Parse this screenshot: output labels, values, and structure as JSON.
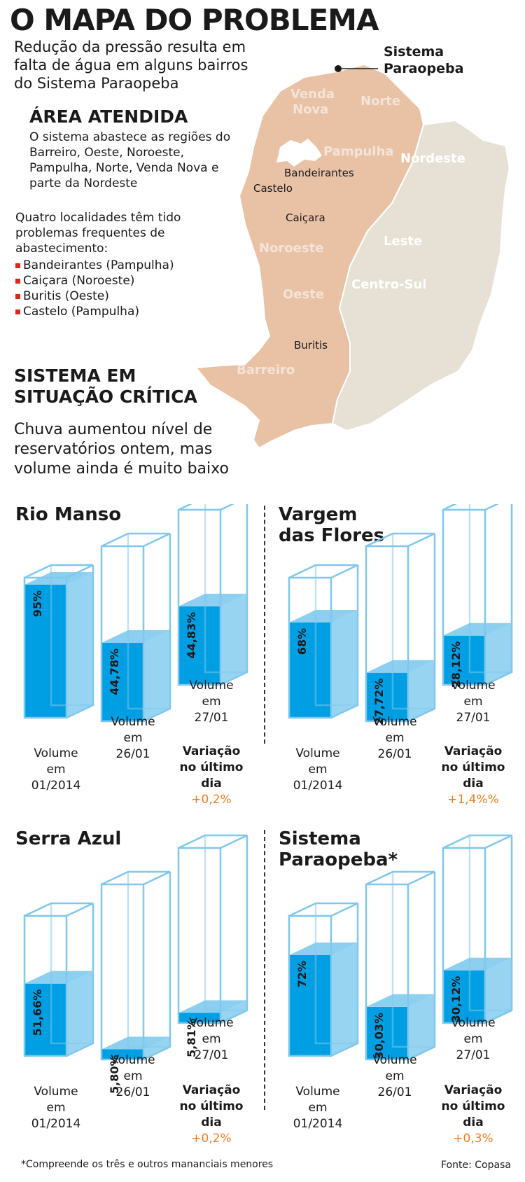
{
  "header": {
    "title": "O MAPA DO PROBLEMA",
    "subtitle": "Redução da pressão resulta em falta de água em alguns bairros do Sistema Paraopeba"
  },
  "area": {
    "heading": "ÁREA ATENDIDA",
    "text": "O sistema abastece as regiões do Barreiro, Oeste, Noroeste, Pampulha, Norte, Venda Nova e parte da Nordeste",
    "problems_intro": "Quatro localidades têm tido problemas frequentes de abastecimento:",
    "problems": [
      "Bandeirantes (Pampulha)",
      "Caiçara (Noroeste)",
      "Buritis (Oeste)",
      "Castelo (Pampulha)"
    ]
  },
  "critical": {
    "heading": "SISTEMA EM SITUAÇÃO CRÍTICA",
    "text": "Chuva aumentou nível de reservatórios ontem, mas volume ainda é muito baixo"
  },
  "map": {
    "system_label": "Sistema Paraopeba",
    "regions": [
      "Venda Nova",
      "Norte",
      "Pampulha",
      "Nordeste",
      "Noroeste",
      "Leste",
      "Oeste",
      "Centro-Sul",
      "Barreiro"
    ],
    "places": [
      "Bandeirantes",
      "Castelo",
      "Caiçara",
      "Buritis"
    ],
    "colors": {
      "served": "#e9c2a6",
      "other": "#e6e1d4",
      "lake": "#ffffff"
    }
  },
  "captions": {
    "vol_2014": "Volume em 01/2014",
    "vol_2601": "Volume em 26/01",
    "vol_2701": "Volume em 27/01",
    "variation": "Variação no último dia"
  },
  "reservoirs": [
    {
      "name": "Rio Manso",
      "v2014": "95%",
      "v2601": "44,78%",
      "v2701": "44,83%",
      "variation": "+0,2%",
      "levels": [
        0.95,
        0.4478,
        0.4483
      ]
    },
    {
      "name": "Vargem das Flores",
      "v2014": "68%",
      "v2601": "27,72%",
      "v2701": "28,12%",
      "variation": "+1,4%%",
      "levels": [
        0.68,
        0.2772,
        0.2812
      ]
    },
    {
      "name": "Serra Azul",
      "v2014": "51,66%",
      "v2601": "5,80%",
      "v2701": "5,81%",
      "variation": "+0,2%",
      "levels": [
        0.5166,
        0.058,
        0.0581
      ]
    },
    {
      "name": "Sistema Paraopeba*",
      "v2014": "72%",
      "v2601": "30,03%",
      "v2701": "30,12%",
      "variation": "+0,3%",
      "levels": [
        0.72,
        0.3003,
        0.3012
      ]
    }
  ],
  "footer": {
    "note": "*Compreende os três e outros mananciais menores",
    "source": "Fonte: Copasa"
  },
  "colors": {
    "water_front": "#009fe3",
    "water_side": "#8ccff0",
    "glass": "#7fc7ec",
    "variation": "#f07d1d"
  }
}
